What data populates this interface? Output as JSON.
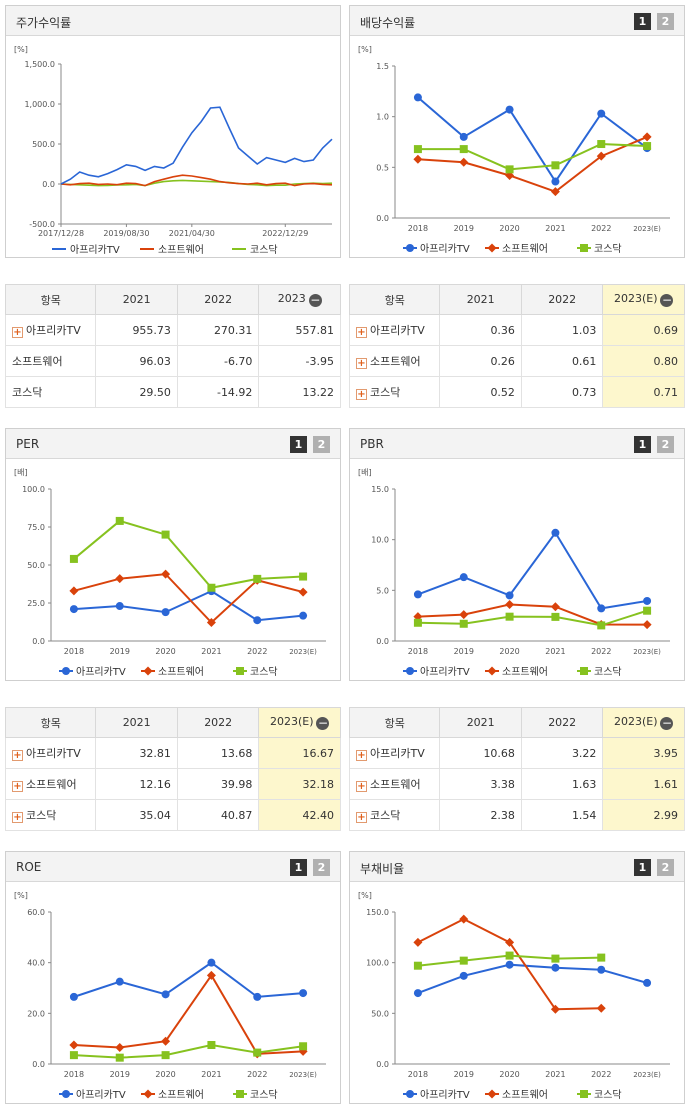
{
  "pager": {
    "one": "1",
    "two": "2"
  },
  "ui": {
    "plus": "+",
    "minus": "−"
  },
  "colors": {
    "afreeca": "#2a66d6",
    "software": "#d9420b",
    "kosdaq": "#86c21f"
  },
  "charts": {
    "stock": {
      "title": "주가수익률",
      "chart_data": {
        "type": "line",
        "unit": "[%]",
        "ylim": [
          -500,
          1500
        ],
        "yticks": [
          "1,500.0",
          "1,000.0",
          "500.0",
          "0.0",
          "-500.0"
        ],
        "xticks": [
          "2017/12/28",
          "2019/08/30",
          "2021/04/30",
          "2022/12/29"
        ],
        "x": [
          "2017/12/28",
          "2018/03",
          "2018/06",
          "2018/09",
          "2018/12",
          "2019/03",
          "2019/06",
          "2019/08/30",
          "2019/12",
          "2020/03",
          "2020/06",
          "2020/09",
          "2020/12",
          "2021/02",
          "2021/04/30",
          "2021/06",
          "2021/08",
          "2021/10",
          "2021/11",
          "2022/01",
          "2022/03",
          "2022/05",
          "2022/08",
          "2022/10",
          "2022/12/29",
          "2023/03",
          "2023/05",
          "2023/07",
          "2023/09",
          "2023/11"
        ],
        "series": [
          {
            "name": "아프리카TV",
            "values": [
              0,
              60,
              150,
              110,
              90,
              130,
              180,
              240,
              220,
              170,
              220,
              200,
              260,
              460,
              640,
              780,
              950,
              960,
              700,
              450,
              350,
              250,
              330,
              300,
              270,
              320,
              280,
              300,
              450,
              560
            ]
          },
          {
            "name": "소프트웨어",
            "values": [
              0,
              -10,
              5,
              10,
              -5,
              0,
              -8,
              10,
              5,
              -20,
              30,
              60,
              90,
              110,
              100,
              80,
              60,
              30,
              15,
              5,
              0,
              10,
              -10,
              5,
              10,
              -20,
              0,
              5,
              -5,
              -10
            ]
          },
          {
            "name": "코스닥",
            "values": [
              0,
              -5,
              -10,
              -15,
              -20,
              -18,
              -12,
              -10,
              -5,
              -20,
              10,
              30,
              40,
              45,
              40,
              35,
              30,
              25,
              20,
              5,
              -5,
              -10,
              -20,
              -15,
              -15,
              0,
              5,
              10,
              5,
              10
            ]
          }
        ]
      }
    },
    "dividend": {
      "title": "배당수익률",
      "chart_data": {
        "type": "line",
        "unit": "[%]",
        "ylim": [
          0,
          1.5
        ],
        "yticks": [
          "1.5",
          "1.0",
          "0.5",
          "0.0"
        ],
        "categories": [
          "2018",
          "2019",
          "2020",
          "2021",
          "2022",
          "2023(E)"
        ],
        "series": [
          {
            "name": "아프리카TV",
            "values": [
              1.19,
              0.8,
              1.07,
              0.36,
              1.03,
              0.69
            ]
          },
          {
            "name": "소프트웨어",
            "values": [
              0.58,
              0.55,
              0.42,
              0.26,
              0.61,
              0.8
            ]
          },
          {
            "name": "코스닥",
            "values": [
              0.68,
              0.68,
              0.48,
              0.52,
              0.73,
              0.71
            ]
          }
        ]
      }
    },
    "per": {
      "title": "PER",
      "chart_data": {
        "type": "line",
        "unit": "[배]",
        "ylim": [
          0,
          100
        ],
        "yticks": [
          "100.0",
          "75.0",
          "50.0",
          "25.0",
          "0.0"
        ],
        "categories": [
          "2018",
          "2019",
          "2020",
          "2021",
          "2022",
          "2023(E)"
        ],
        "series": [
          {
            "name": "아프리카TV",
            "values": [
              21.0,
              23.0,
              19.0,
              32.81,
              13.68,
              16.67
            ]
          },
          {
            "name": "소프트웨어",
            "values": [
              33.0,
              41.0,
              44.0,
              12.16,
              39.98,
              32.18
            ]
          },
          {
            "name": "코스닥",
            "values": [
              54.0,
              79.0,
              70.0,
              35.04,
              40.87,
              42.4
            ]
          }
        ]
      }
    },
    "pbr": {
      "title": "PBR",
      "chart_data": {
        "type": "line",
        "unit": "[배]",
        "ylim": [
          0,
          15
        ],
        "yticks": [
          "15.0",
          "10.0",
          "5.0",
          "0.0"
        ],
        "categories": [
          "2018",
          "2019",
          "2020",
          "2021",
          "2022",
          "2023(E)"
        ],
        "series": [
          {
            "name": "아프리카TV",
            "values": [
              4.6,
              6.3,
              4.5,
              10.68,
              3.22,
              3.95
            ]
          },
          {
            "name": "소프트웨어",
            "values": [
              2.4,
              2.6,
              3.6,
              3.38,
              1.63,
              1.61
            ]
          },
          {
            "name": "코스닥",
            "values": [
              1.8,
              1.7,
              2.4,
              2.38,
              1.54,
              2.99
            ]
          }
        ]
      }
    },
    "roe": {
      "title": "ROE",
      "chart_data": {
        "type": "line",
        "unit": "[%]",
        "ylim": [
          0,
          60
        ],
        "yticks": [
          "60.0",
          "40.0",
          "20.0",
          "0.0"
        ],
        "categories": [
          "2018",
          "2019",
          "2020",
          "2021",
          "2022",
          "2023(E)"
        ],
        "series": [
          {
            "name": "아프리카TV",
            "values": [
              26.5,
              32.5,
              27.5,
              40.0,
              26.5,
              28.0
            ]
          },
          {
            "name": "소프트웨어",
            "values": [
              7.5,
              6.5,
              9.0,
              35.0,
              4.0,
              5.0
            ]
          },
          {
            "name": "코스닥",
            "values": [
              3.5,
              2.5,
              3.5,
              7.5,
              4.5,
              7.0
            ]
          }
        ]
      }
    },
    "debt": {
      "title": "부채비율",
      "chart_data": {
        "type": "line",
        "unit": "[%]",
        "ylim": [
          0,
          150
        ],
        "yticks": [
          "150.0",
          "100.0",
          "50.0",
          "0.0"
        ],
        "categories": [
          "2018",
          "2019",
          "2020",
          "2021",
          "2022",
          "2023(E)"
        ],
        "series": [
          {
            "name": "아프리카TV",
            "values": [
              70,
              87,
              98,
              95,
              93,
              80
            ]
          },
          {
            "name": "소프트웨어",
            "values": [
              120,
              143,
              120,
              54,
              55,
              null
            ]
          },
          {
            "name": "코스닥",
            "values": [
              97,
              102,
              107,
              104,
              105,
              null
            ]
          }
        ]
      }
    }
  },
  "tables": {
    "stock": {
      "headers": [
        "항목",
        "2021",
        "2022",
        "2023"
      ],
      "rows": [
        {
          "name": "아프리카TV",
          "plus": true,
          "values": [
            "955.73",
            "270.31",
            "557.81"
          ]
        },
        {
          "name": "소프트웨어",
          "plus": false,
          "values": [
            "96.03",
            "-6.70",
            "-3.95"
          ]
        },
        {
          "name": "코스닥",
          "plus": false,
          "values": [
            "29.50",
            "-14.92",
            "13.22"
          ]
        }
      ]
    },
    "dividend": {
      "headers": [
        "항목",
        "2021",
        "2022",
        "2023(E)"
      ],
      "rows": [
        {
          "name": "아프리카TV",
          "plus": true,
          "values": [
            "0.36",
            "1.03",
            "0.69"
          ]
        },
        {
          "name": "소프트웨어",
          "plus": true,
          "values": [
            "0.26",
            "0.61",
            "0.80"
          ]
        },
        {
          "name": "코스닥",
          "plus": true,
          "values": [
            "0.52",
            "0.73",
            "0.71"
          ]
        }
      ]
    },
    "per": {
      "headers": [
        "항목",
        "2021",
        "2022",
        "2023(E)"
      ],
      "rows": [
        {
          "name": "아프리카TV",
          "plus": true,
          "values": [
            "32.81",
            "13.68",
            "16.67"
          ]
        },
        {
          "name": "소프트웨어",
          "plus": true,
          "values": [
            "12.16",
            "39.98",
            "32.18"
          ]
        },
        {
          "name": "코스닥",
          "plus": true,
          "values": [
            "35.04",
            "40.87",
            "42.40"
          ]
        }
      ]
    },
    "pbr": {
      "headers": [
        "항목",
        "2021",
        "2022",
        "2023(E)"
      ],
      "rows": [
        {
          "name": "아프리카TV",
          "plus": true,
          "values": [
            "10.68",
            "3.22",
            "3.95"
          ]
        },
        {
          "name": "소프트웨어",
          "plus": true,
          "values": [
            "3.38",
            "1.63",
            "1.61"
          ]
        },
        {
          "name": "코스닥",
          "plus": true,
          "values": [
            "2.38",
            "1.54",
            "2.99"
          ]
        }
      ]
    }
  }
}
